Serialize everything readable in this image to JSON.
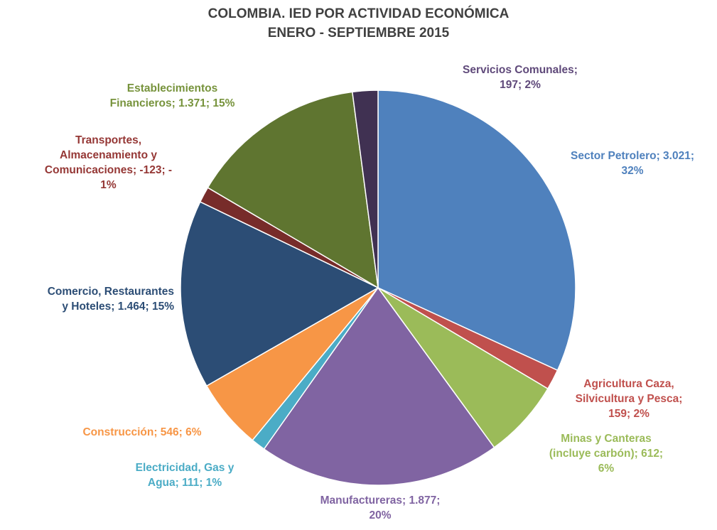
{
  "chart_data": {
    "type": "pie",
    "title": "COLOMBIA. IED POR ACTIVIDAD ECONÓMICA",
    "subtitle": "ENERO - SEPTIEMBRE 2015",
    "slices": [
      {
        "name": "Sector Petrolero",
        "value": 3021,
        "percent": 32,
        "color": "#4f81bd",
        "label": "Sector Petrolero; 3.021;\n32%",
        "label_color": "#4f81bd"
      },
      {
        "name": "Agricultura Caza, Silvicultura y Pesca",
        "value": 159,
        "percent": 2,
        "color": "#c0504d",
        "label": "Agricultura Caza,\nSilvicultura y Pesca;\n159; 2%",
        "label_color": "#c0504d"
      },
      {
        "name": "Minas y Canteras (incluye carbón)",
        "value": 612,
        "percent": 6,
        "color": "#9bbb59",
        "label": "Minas y Canteras\n(incluye carbón); 612;\n6%",
        "label_color": "#9bbb59"
      },
      {
        "name": "Manufactureras",
        "value": 1877,
        "percent": 20,
        "color": "#8064a2",
        "label": "Manufactureras; 1.877;\n20%",
        "label_color": "#8064a2"
      },
      {
        "name": "Electricidad, Gas y Agua",
        "value": 111,
        "percent": 1,
        "color": "#4bacc6",
        "label": "Electricidad, Gas y\nAgua; 111; 1%",
        "label_color": "#4bacc6"
      },
      {
        "name": "Construcción",
        "value": 546,
        "percent": 6,
        "color": "#f79646",
        "label": "Construcción; 546; 6%",
        "label_color": "#f79646"
      },
      {
        "name": "Comercio, Restaurantes y Hoteles",
        "value": 1464,
        "percent": 15,
        "color": "#2c4d75",
        "label": "Comercio, Restaurantes\ny Hoteles; 1.464; 15%",
        "label_color": "#2c4d75"
      },
      {
        "name": "Transportes, Almacenamiento y Comunicaciones",
        "value": -123,
        "percent": -1,
        "color": "#772c2a",
        "label": "Transportes,\nAlmacenamiento y\nComunicaciones; -123; -\n1%",
        "label_color": "#953735"
      },
      {
        "name": "Establecimientos Financieros",
        "value": 1371,
        "percent": 15,
        "color": "#5f7530",
        "label": "Establecimientos\nFinancieros; 1.371; 15%",
        "label_color": "#77933c"
      },
      {
        "name": "Servicios Comunales",
        "value": 197,
        "percent": 2,
        "color": "#403152",
        "label": "Servicios Comunales;\n197; 2%",
        "label_color": "#5f497a"
      }
    ],
    "legend": "none"
  }
}
